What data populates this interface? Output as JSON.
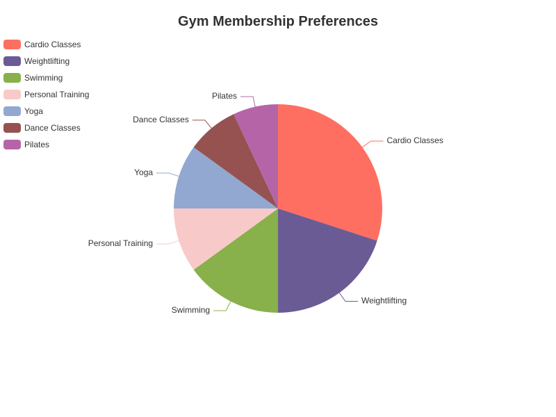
{
  "chart_data": {
    "type": "pie",
    "title": "Gym Membership Preferences",
    "legend_position": "top-left",
    "categories": [
      "Cardio Classes",
      "Weightlifting",
      "Swimming",
      "Personal Training",
      "Yoga",
      "Dance Classes",
      "Pilates"
    ],
    "values": [
      30,
      20,
      15,
      10,
      10,
      8,
      7
    ],
    "colors": [
      "#ff6f61",
      "#6b5b95",
      "#88b04b",
      "#f7cac9",
      "#92a8d1",
      "#955251",
      "#b565a7"
    ]
  }
}
